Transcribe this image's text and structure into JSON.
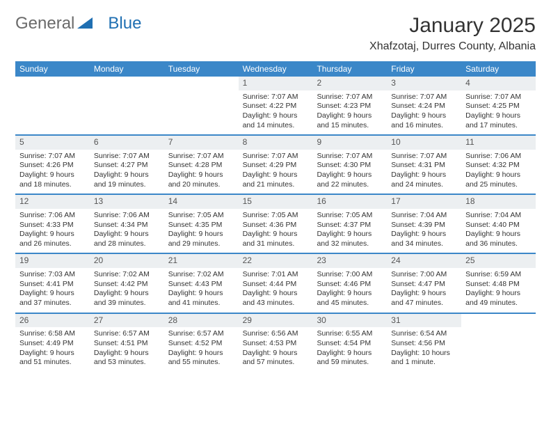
{
  "branding": {
    "text1": "General",
    "text2": "Blue",
    "text1_color": "#6a6a6a",
    "text2_color": "#1f6fb2",
    "triangle_color": "#1f6fb2"
  },
  "header": {
    "title": "January 2025",
    "location": "Xhafzotaj, Durres County, Albania"
  },
  "colors": {
    "header_bar": "#3b87c8",
    "daynum_bg": "#eceff1",
    "week_divider": "#3b87c8",
    "text": "#333333",
    "background": "#ffffff"
  },
  "days_of_week": [
    "Sunday",
    "Monday",
    "Tuesday",
    "Wednesday",
    "Thursday",
    "Friday",
    "Saturday"
  ],
  "weeks": [
    [
      {
        "day": "",
        "sunrise": "",
        "sunset": "",
        "daylight1": "",
        "daylight2": ""
      },
      {
        "day": "",
        "sunrise": "",
        "sunset": "",
        "daylight1": "",
        "daylight2": ""
      },
      {
        "day": "",
        "sunrise": "",
        "sunset": "",
        "daylight1": "",
        "daylight2": ""
      },
      {
        "day": "1",
        "sunrise": "Sunrise: 7:07 AM",
        "sunset": "Sunset: 4:22 PM",
        "daylight1": "Daylight: 9 hours",
        "daylight2": "and 14 minutes."
      },
      {
        "day": "2",
        "sunrise": "Sunrise: 7:07 AM",
        "sunset": "Sunset: 4:23 PM",
        "daylight1": "Daylight: 9 hours",
        "daylight2": "and 15 minutes."
      },
      {
        "day": "3",
        "sunrise": "Sunrise: 7:07 AM",
        "sunset": "Sunset: 4:24 PM",
        "daylight1": "Daylight: 9 hours",
        "daylight2": "and 16 minutes."
      },
      {
        "day": "4",
        "sunrise": "Sunrise: 7:07 AM",
        "sunset": "Sunset: 4:25 PM",
        "daylight1": "Daylight: 9 hours",
        "daylight2": "and 17 minutes."
      }
    ],
    [
      {
        "day": "5",
        "sunrise": "Sunrise: 7:07 AM",
        "sunset": "Sunset: 4:26 PM",
        "daylight1": "Daylight: 9 hours",
        "daylight2": "and 18 minutes."
      },
      {
        "day": "6",
        "sunrise": "Sunrise: 7:07 AM",
        "sunset": "Sunset: 4:27 PM",
        "daylight1": "Daylight: 9 hours",
        "daylight2": "and 19 minutes."
      },
      {
        "day": "7",
        "sunrise": "Sunrise: 7:07 AM",
        "sunset": "Sunset: 4:28 PM",
        "daylight1": "Daylight: 9 hours",
        "daylight2": "and 20 minutes."
      },
      {
        "day": "8",
        "sunrise": "Sunrise: 7:07 AM",
        "sunset": "Sunset: 4:29 PM",
        "daylight1": "Daylight: 9 hours",
        "daylight2": "and 21 minutes."
      },
      {
        "day": "9",
        "sunrise": "Sunrise: 7:07 AM",
        "sunset": "Sunset: 4:30 PM",
        "daylight1": "Daylight: 9 hours",
        "daylight2": "and 22 minutes."
      },
      {
        "day": "10",
        "sunrise": "Sunrise: 7:07 AM",
        "sunset": "Sunset: 4:31 PM",
        "daylight1": "Daylight: 9 hours",
        "daylight2": "and 24 minutes."
      },
      {
        "day": "11",
        "sunrise": "Sunrise: 7:06 AM",
        "sunset": "Sunset: 4:32 PM",
        "daylight1": "Daylight: 9 hours",
        "daylight2": "and 25 minutes."
      }
    ],
    [
      {
        "day": "12",
        "sunrise": "Sunrise: 7:06 AM",
        "sunset": "Sunset: 4:33 PM",
        "daylight1": "Daylight: 9 hours",
        "daylight2": "and 26 minutes."
      },
      {
        "day": "13",
        "sunrise": "Sunrise: 7:06 AM",
        "sunset": "Sunset: 4:34 PM",
        "daylight1": "Daylight: 9 hours",
        "daylight2": "and 28 minutes."
      },
      {
        "day": "14",
        "sunrise": "Sunrise: 7:05 AM",
        "sunset": "Sunset: 4:35 PM",
        "daylight1": "Daylight: 9 hours",
        "daylight2": "and 29 minutes."
      },
      {
        "day": "15",
        "sunrise": "Sunrise: 7:05 AM",
        "sunset": "Sunset: 4:36 PM",
        "daylight1": "Daylight: 9 hours",
        "daylight2": "and 31 minutes."
      },
      {
        "day": "16",
        "sunrise": "Sunrise: 7:05 AM",
        "sunset": "Sunset: 4:37 PM",
        "daylight1": "Daylight: 9 hours",
        "daylight2": "and 32 minutes."
      },
      {
        "day": "17",
        "sunrise": "Sunrise: 7:04 AM",
        "sunset": "Sunset: 4:39 PM",
        "daylight1": "Daylight: 9 hours",
        "daylight2": "and 34 minutes."
      },
      {
        "day": "18",
        "sunrise": "Sunrise: 7:04 AM",
        "sunset": "Sunset: 4:40 PM",
        "daylight1": "Daylight: 9 hours",
        "daylight2": "and 36 minutes."
      }
    ],
    [
      {
        "day": "19",
        "sunrise": "Sunrise: 7:03 AM",
        "sunset": "Sunset: 4:41 PM",
        "daylight1": "Daylight: 9 hours",
        "daylight2": "and 37 minutes."
      },
      {
        "day": "20",
        "sunrise": "Sunrise: 7:02 AM",
        "sunset": "Sunset: 4:42 PM",
        "daylight1": "Daylight: 9 hours",
        "daylight2": "and 39 minutes."
      },
      {
        "day": "21",
        "sunrise": "Sunrise: 7:02 AM",
        "sunset": "Sunset: 4:43 PM",
        "daylight1": "Daylight: 9 hours",
        "daylight2": "and 41 minutes."
      },
      {
        "day": "22",
        "sunrise": "Sunrise: 7:01 AM",
        "sunset": "Sunset: 4:44 PM",
        "daylight1": "Daylight: 9 hours",
        "daylight2": "and 43 minutes."
      },
      {
        "day": "23",
        "sunrise": "Sunrise: 7:00 AM",
        "sunset": "Sunset: 4:46 PM",
        "daylight1": "Daylight: 9 hours",
        "daylight2": "and 45 minutes."
      },
      {
        "day": "24",
        "sunrise": "Sunrise: 7:00 AM",
        "sunset": "Sunset: 4:47 PM",
        "daylight1": "Daylight: 9 hours",
        "daylight2": "and 47 minutes."
      },
      {
        "day": "25",
        "sunrise": "Sunrise: 6:59 AM",
        "sunset": "Sunset: 4:48 PM",
        "daylight1": "Daylight: 9 hours",
        "daylight2": "and 49 minutes."
      }
    ],
    [
      {
        "day": "26",
        "sunrise": "Sunrise: 6:58 AM",
        "sunset": "Sunset: 4:49 PM",
        "daylight1": "Daylight: 9 hours",
        "daylight2": "and 51 minutes."
      },
      {
        "day": "27",
        "sunrise": "Sunrise: 6:57 AM",
        "sunset": "Sunset: 4:51 PM",
        "daylight1": "Daylight: 9 hours",
        "daylight2": "and 53 minutes."
      },
      {
        "day": "28",
        "sunrise": "Sunrise: 6:57 AM",
        "sunset": "Sunset: 4:52 PM",
        "daylight1": "Daylight: 9 hours",
        "daylight2": "and 55 minutes."
      },
      {
        "day": "29",
        "sunrise": "Sunrise: 6:56 AM",
        "sunset": "Sunset: 4:53 PM",
        "daylight1": "Daylight: 9 hours",
        "daylight2": "and 57 minutes."
      },
      {
        "day": "30",
        "sunrise": "Sunrise: 6:55 AM",
        "sunset": "Sunset: 4:54 PM",
        "daylight1": "Daylight: 9 hours",
        "daylight2": "and 59 minutes."
      },
      {
        "day": "31",
        "sunrise": "Sunrise: 6:54 AM",
        "sunset": "Sunset: 4:56 PM",
        "daylight1": "Daylight: 10 hours",
        "daylight2": "and 1 minute."
      },
      {
        "day": "",
        "sunrise": "",
        "sunset": "",
        "daylight1": "",
        "daylight2": ""
      }
    ]
  ]
}
